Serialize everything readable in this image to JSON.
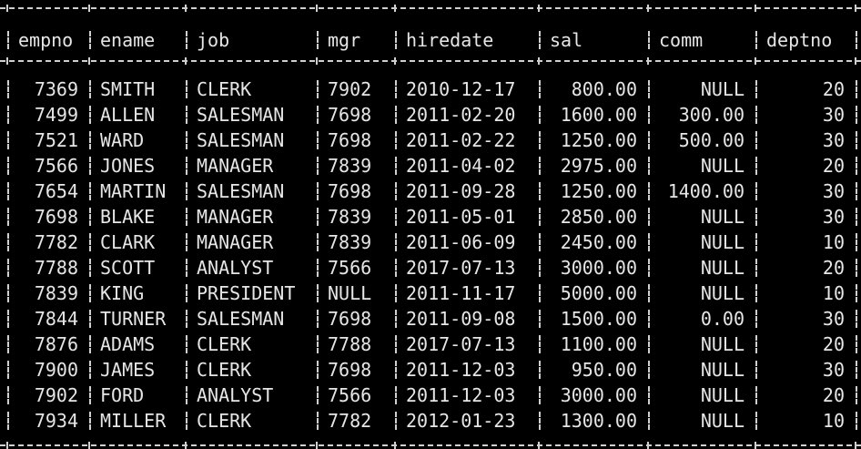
{
  "table": {
    "columns": [
      "empno",
      "ename",
      "job",
      "mgr",
      "hiredate",
      "sal",
      "comm",
      "deptno"
    ],
    "rows": [
      [
        "7369",
        "SMITH",
        "CLERK",
        "7902",
        "2010-12-17",
        "800.00",
        "NULL",
        "20"
      ],
      [
        "7499",
        "ALLEN",
        "SALESMAN",
        "7698",
        "2011-02-20",
        "1600.00",
        "300.00",
        "30"
      ],
      [
        "7521",
        "WARD",
        "SALESMAN",
        "7698",
        "2011-02-22",
        "1250.00",
        "500.00",
        "30"
      ],
      [
        "7566",
        "JONES",
        "MANAGER",
        "7839",
        "2011-04-02",
        "2975.00",
        "NULL",
        "20"
      ],
      [
        "7654",
        "MARTIN",
        "SALESMAN",
        "7698",
        "2011-09-28",
        "1250.00",
        "1400.00",
        "30"
      ],
      [
        "7698",
        "BLAKE",
        "MANAGER",
        "7839",
        "2011-05-01",
        "2850.00",
        "NULL",
        "30"
      ],
      [
        "7782",
        "CLARK",
        "MANAGER",
        "7839",
        "2011-06-09",
        "2450.00",
        "NULL",
        "10"
      ],
      [
        "7788",
        "SCOTT",
        "ANALYST",
        "7566",
        "2017-07-13",
        "3000.00",
        "NULL",
        "20"
      ],
      [
        "7839",
        "KING",
        "PRESIDENT",
        "NULL",
        "2011-11-17",
        "5000.00",
        "NULL",
        "10"
      ],
      [
        "7844",
        "TURNER",
        "SALESMAN",
        "7698",
        "2011-09-08",
        "1500.00",
        "0.00",
        "30"
      ],
      [
        "7876",
        "ADAMS",
        "CLERK",
        "7788",
        "2017-07-13",
        "1100.00",
        "NULL",
        "20"
      ],
      [
        "7900",
        "JAMES",
        "CLERK",
        "7698",
        "2011-12-03",
        "950.00",
        "NULL",
        "30"
      ],
      [
        "7902",
        "FORD",
        "ANALYST",
        "7566",
        "2011-12-03",
        "3000.00",
        "NULL",
        "20"
      ],
      [
        "7934",
        "MILLER",
        "CLERK",
        "7782",
        "2012-01-23",
        "1300.00",
        "NULL",
        "10"
      ]
    ]
  },
  "colors": {
    "background": "#000000",
    "text": "#e6e6e6",
    "border": "#cfcfcf"
  }
}
